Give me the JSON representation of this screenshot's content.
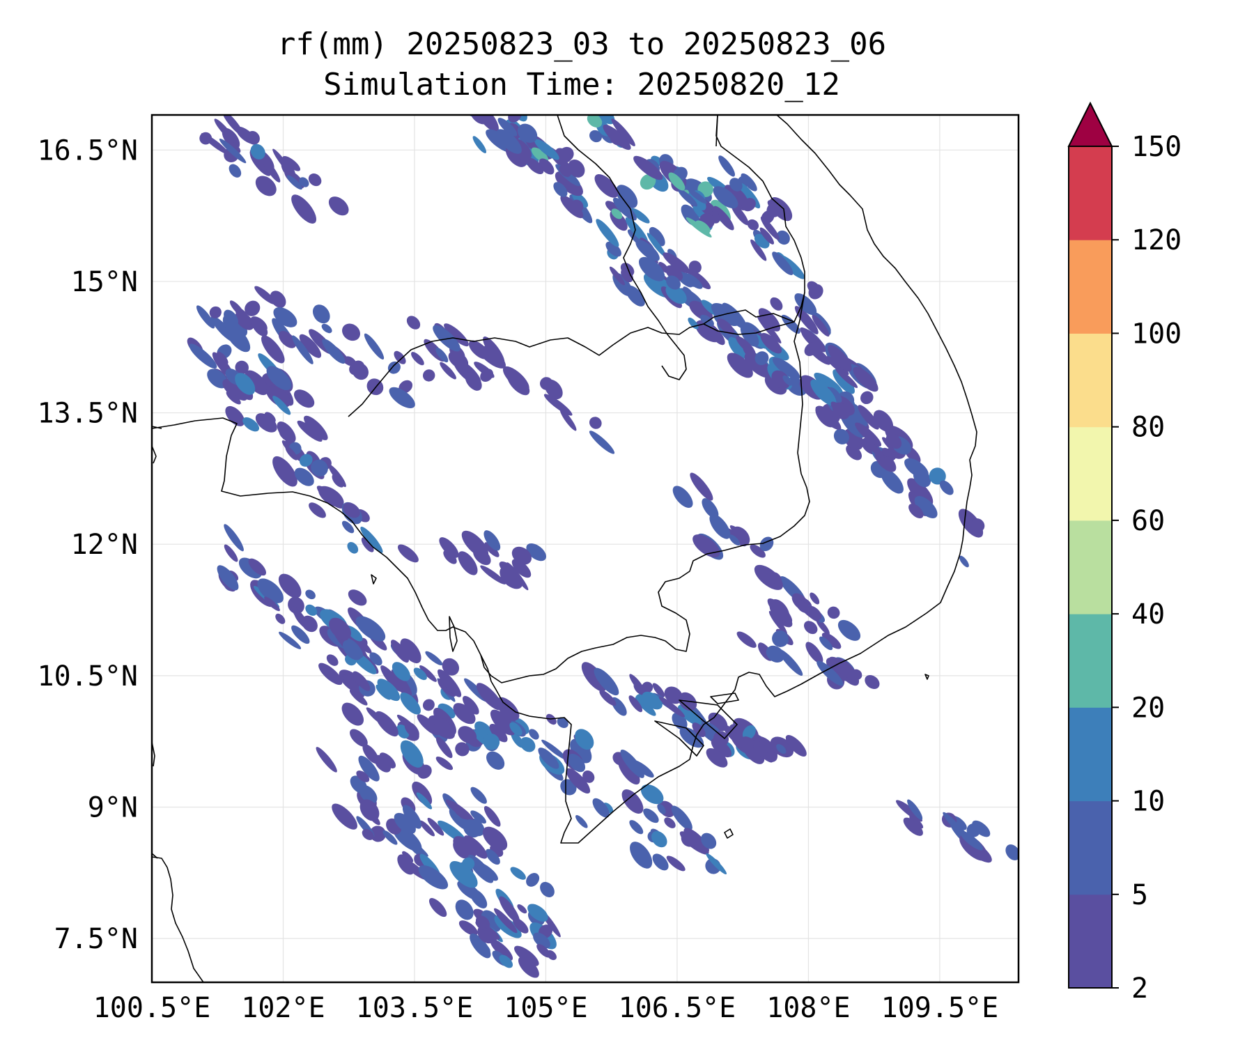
{
  "title": {
    "line1": "rf(mm) 20250823_03 to 20250823_06",
    "line2": "Simulation Time: 20250820_12"
  },
  "axes": {
    "x_ticks": [
      "100.5°E",
      "102°E",
      "103.5°E",
      "105°E",
      "106.5°E",
      "108°E",
      "109.5°E"
    ],
    "y_ticks": [
      "16.5°N",
      "15°N",
      "13.5°N",
      "12°N",
      "10.5°N",
      "9°N",
      "7.5°N"
    ],
    "x_range_deg": [
      100.5,
      110.4
    ],
    "y_range_deg": [
      7.0,
      16.9
    ],
    "grid": true
  },
  "colorbar": {
    "ticks": [
      "2",
      "5",
      "10",
      "20",
      "40",
      "60",
      "80",
      "100",
      "120",
      "150"
    ],
    "colors": [
      "#5a4fa0",
      "#4a62ad",
      "#3d7fba",
      "#5eb8a8",
      "#b9df9f",
      "#f2f6ad",
      "#fbdd8c",
      "#f99c5b",
      "#d43d4f",
      "#9e0142"
    ],
    "extend": "max"
  },
  "colors": {
    "land_outline": "#000000",
    "frame": "#000000",
    "grid": "#dddddd",
    "background": "#ffffff"
  }
}
